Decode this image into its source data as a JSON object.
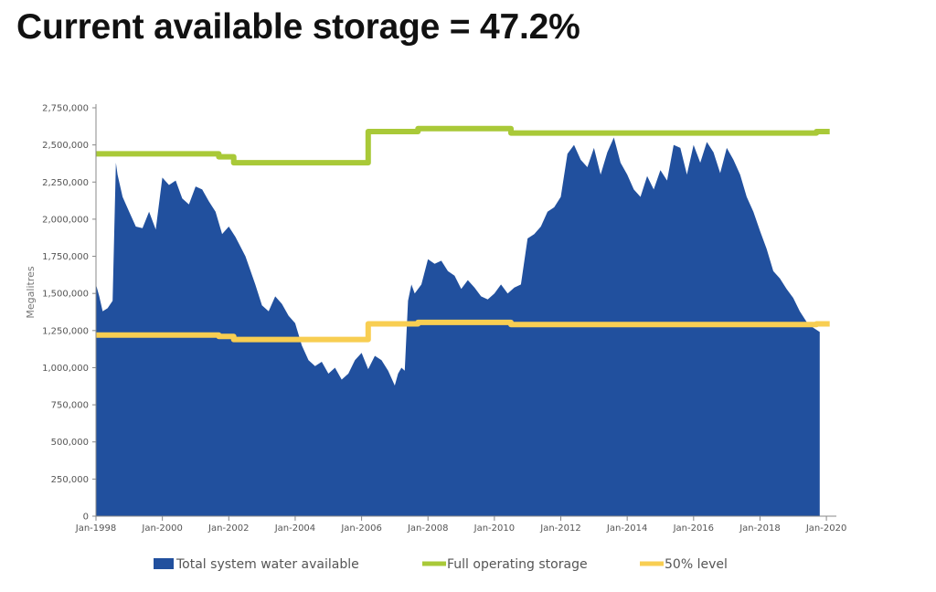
{
  "headline": "Current available storage = 47.2%",
  "chart_data": {
    "type": "area",
    "title": "",
    "xlabel": "",
    "ylabel": "Megalitres",
    "xlim": [
      1998.0,
      2020.3
    ],
    "ylim": [
      0,
      2750000
    ],
    "y_ticks": [
      0,
      250000,
      500000,
      750000,
      1000000,
      1250000,
      1500000,
      1750000,
      2000000,
      2250000,
      2500000,
      2750000
    ],
    "y_tick_labels": [
      "0",
      "250,000",
      "500,000",
      "750,000",
      "1,000,000",
      "1,250,000",
      "1,500,000",
      "1,750,000",
      "2,000,000",
      "2,250,000",
      "2,500,000",
      "2,750,000"
    ],
    "x_ticks": [
      1998,
      2000,
      2002,
      2004,
      2006,
      2008,
      2010,
      2012,
      2014,
      2016,
      2018,
      2020
    ],
    "x_tick_labels": [
      "Jan-1998",
      "Jan-2000",
      "Jan-2002",
      "Jan-2004",
      "Jan-2006",
      "Jan-2008",
      "Jan-2010",
      "Jan-2012",
      "Jan-2014",
      "Jan-2016",
      "Jan-2018",
      "Jan-2020"
    ],
    "grid": false,
    "legend_position": "bottom",
    "series": [
      {
        "name": "Total system water available",
        "kind": "area",
        "color": "#21509e",
        "x": [
          1998.0,
          1998.1,
          1998.2,
          1998.35,
          1998.5,
          1998.6,
          1998.65,
          1998.8,
          1999.0,
          1999.2,
          1999.4,
          1999.6,
          1999.8,
          2000.0,
          2000.2,
          2000.4,
          2000.6,
          2000.8,
          2001.0,
          2001.2,
          2001.4,
          2001.6,
          2001.8,
          2002.0,
          2002.2,
          2002.5,
          2002.8,
          2003.0,
          2003.2,
          2003.4,
          2003.6,
          2003.8,
          2004.0,
          2004.2,
          2004.4,
          2004.6,
          2004.8,
          2005.0,
          2005.2,
          2005.4,
          2005.6,
          2005.8,
          2006.0,
          2006.2,
          2006.4,
          2006.6,
          2006.8,
          2007.0,
          2007.1,
          2007.2,
          2007.3,
          2007.4,
          2007.5,
          2007.6,
          2007.8,
          2008.0,
          2008.2,
          2008.4,
          2008.6,
          2008.8,
          2009.0,
          2009.2,
          2009.4,
          2009.6,
          2009.8,
          2010.0,
          2010.2,
          2010.4,
          2010.6,
          2010.8,
          2011.0,
          2011.2,
          2011.4,
          2011.6,
          2011.8,
          2012.0,
          2012.2,
          2012.4,
          2012.6,
          2012.8,
          2013.0,
          2013.2,
          2013.4,
          2013.6,
          2013.8,
          2014.0,
          2014.2,
          2014.4,
          2014.6,
          2014.8,
          2015.0,
          2015.2,
          2015.4,
          2015.6,
          2015.8,
          2016.0,
          2016.2,
          2016.4,
          2016.6,
          2016.8,
          2017.0,
          2017.2,
          2017.4,
          2017.6,
          2017.8,
          2018.0,
          2018.2,
          2018.4,
          2018.6,
          2018.8,
          2019.0,
          2019.2,
          2019.4,
          2019.6,
          2019.8
        ],
        "y": [
          1560000,
          1480000,
          1380000,
          1400000,
          1450000,
          2380000,
          2300000,
          2150000,
          2050000,
          1950000,
          1940000,
          2050000,
          1930000,
          2280000,
          2230000,
          2260000,
          2140000,
          2100000,
          2220000,
          2200000,
          2120000,
          2050000,
          1900000,
          1950000,
          1880000,
          1750000,
          1560000,
          1420000,
          1380000,
          1480000,
          1430000,
          1350000,
          1300000,
          1150000,
          1050000,
          1010000,
          1040000,
          960000,
          1000000,
          920000,
          960000,
          1050000,
          1100000,
          990000,
          1080000,
          1050000,
          980000,
          880000,
          960000,
          1000000,
          980000,
          1450000,
          1560000,
          1500000,
          1560000,
          1730000,
          1700000,
          1720000,
          1650000,
          1620000,
          1530000,
          1590000,
          1540000,
          1480000,
          1460000,
          1500000,
          1560000,
          1500000,
          1540000,
          1560000,
          1870000,
          1900000,
          1950000,
          2050000,
          2080000,
          2150000,
          2440000,
          2500000,
          2400000,
          2350000,
          2480000,
          2300000,
          2450000,
          2550000,
          2380000,
          2300000,
          2200000,
          2150000,
          2290000,
          2200000,
          2330000,
          2260000,
          2500000,
          2480000,
          2300000,
          2500000,
          2380000,
          2520000,
          2450000,
          2310000,
          2480000,
          2400000,
          2300000,
          2150000,
          2050000,
          1920000,
          1800000,
          1650000,
          1600000,
          1530000,
          1470000,
          1380000,
          1310000,
          1270000,
          1240000
        ]
      },
      {
        "name": "Full operating storage",
        "kind": "step",
        "color": "#a9c938",
        "x": [
          1998.0,
          2001.7,
          2001.7,
          2002.15,
          2002.15,
          2006.2,
          2006.2,
          2007.7,
          2007.7,
          2010.5,
          2010.5,
          2019.7,
          2019.7,
          2020.1
        ],
        "y": [
          2440000,
          2440000,
          2420000,
          2420000,
          2380000,
          2380000,
          2590000,
          2590000,
          2610000,
          2610000,
          2580000,
          2580000,
          2590000,
          2590000
        ]
      },
      {
        "name": "50% level",
        "kind": "step",
        "color": "#f8ce52",
        "x": [
          1998.0,
          2001.7,
          2001.7,
          2002.15,
          2002.15,
          2006.2,
          2006.2,
          2007.7,
          2007.7,
          2010.5,
          2010.5,
          2019.7,
          2019.7,
          2020.1
        ],
        "y": [
          1220000,
          1220000,
          1210000,
          1210000,
          1190000,
          1190000,
          1295000,
          1295000,
          1305000,
          1305000,
          1290000,
          1290000,
          1295000,
          1295000
        ]
      }
    ]
  }
}
